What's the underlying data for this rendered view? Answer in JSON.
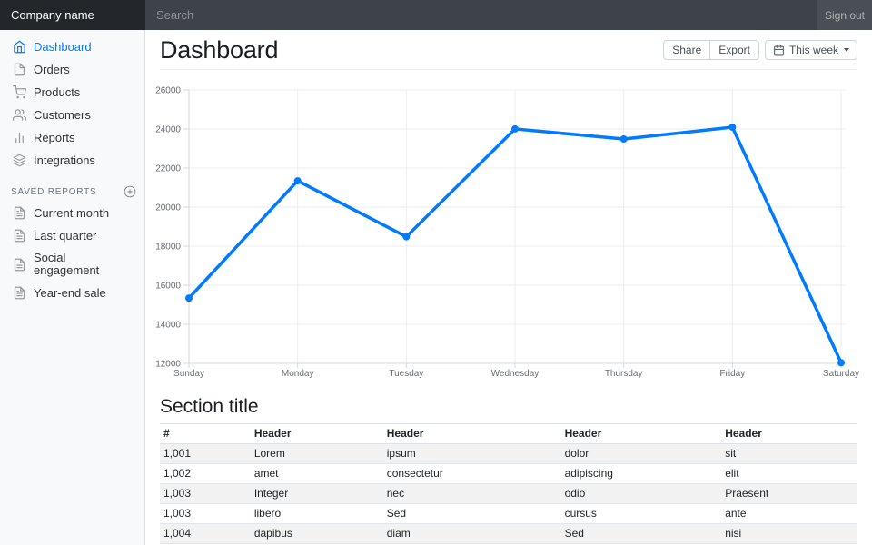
{
  "navbar": {
    "brand": "Company name",
    "search_placeholder": "Search",
    "sign_out_label": "Sign out"
  },
  "sidebar": {
    "items": [
      {
        "label": "Dashboard",
        "icon": "home-icon",
        "active": true
      },
      {
        "label": "Orders",
        "icon": "file-icon",
        "active": false
      },
      {
        "label": "Products",
        "icon": "shopping-cart-icon",
        "active": false
      },
      {
        "label": "Customers",
        "icon": "users-icon",
        "active": false
      },
      {
        "label": "Reports",
        "icon": "bar-chart-icon",
        "active": false
      },
      {
        "label": "Integrations",
        "icon": "layers-icon",
        "active": false
      }
    ],
    "saved_reports_heading": "Saved reports",
    "saved_reports": [
      {
        "label": "Current month",
        "icon": "file-text-icon"
      },
      {
        "label": "Last quarter",
        "icon": "file-text-icon"
      },
      {
        "label": "Social engagement",
        "icon": "file-text-icon"
      },
      {
        "label": "Year-end sale",
        "icon": "file-text-icon"
      }
    ]
  },
  "page": {
    "title": "Dashboard"
  },
  "toolbar": {
    "share_label": "Share",
    "export_label": "Export",
    "period_label": "This week"
  },
  "chart_data": {
    "type": "line",
    "categories": [
      "Sunday",
      "Monday",
      "Tuesday",
      "Wednesday",
      "Thursday",
      "Friday",
      "Saturday"
    ],
    "values": [
      15339,
      21345,
      18483,
      24003,
      23489,
      24092,
      12034
    ],
    "title": "",
    "xlabel": "",
    "ylabel": "",
    "ylim": [
      12000,
      26000
    ],
    "ytick_step": 2000,
    "grid": true,
    "legend_position": "none",
    "line_color": "#007bff",
    "point_color": "#007bff"
  },
  "section": {
    "title": "Section title"
  },
  "table": {
    "headers": [
      "#",
      "Header",
      "Header",
      "Header",
      "Header"
    ],
    "rows": [
      [
        "1,001",
        "Lorem",
        "ipsum",
        "dolor",
        "sit"
      ],
      [
        "1,002",
        "amet",
        "consectetur",
        "adipiscing",
        "elit"
      ],
      [
        "1,003",
        "Integer",
        "nec",
        "odio",
        "Praesent"
      ],
      [
        "1,003",
        "libero",
        "Sed",
        "cursus",
        "ante"
      ],
      [
        "1,004",
        "dapibus",
        "diam",
        "Sed",
        "nisi"
      ]
    ]
  },
  "colors": {
    "accent": "#007bff",
    "navbar_brand_bg": "#23272b",
    "navbar_bg": "#3e4349",
    "signout_bg": "#4a4f55",
    "sidebar_bg": "#f8f9fa",
    "table_stripe": "#f2f2f2"
  }
}
